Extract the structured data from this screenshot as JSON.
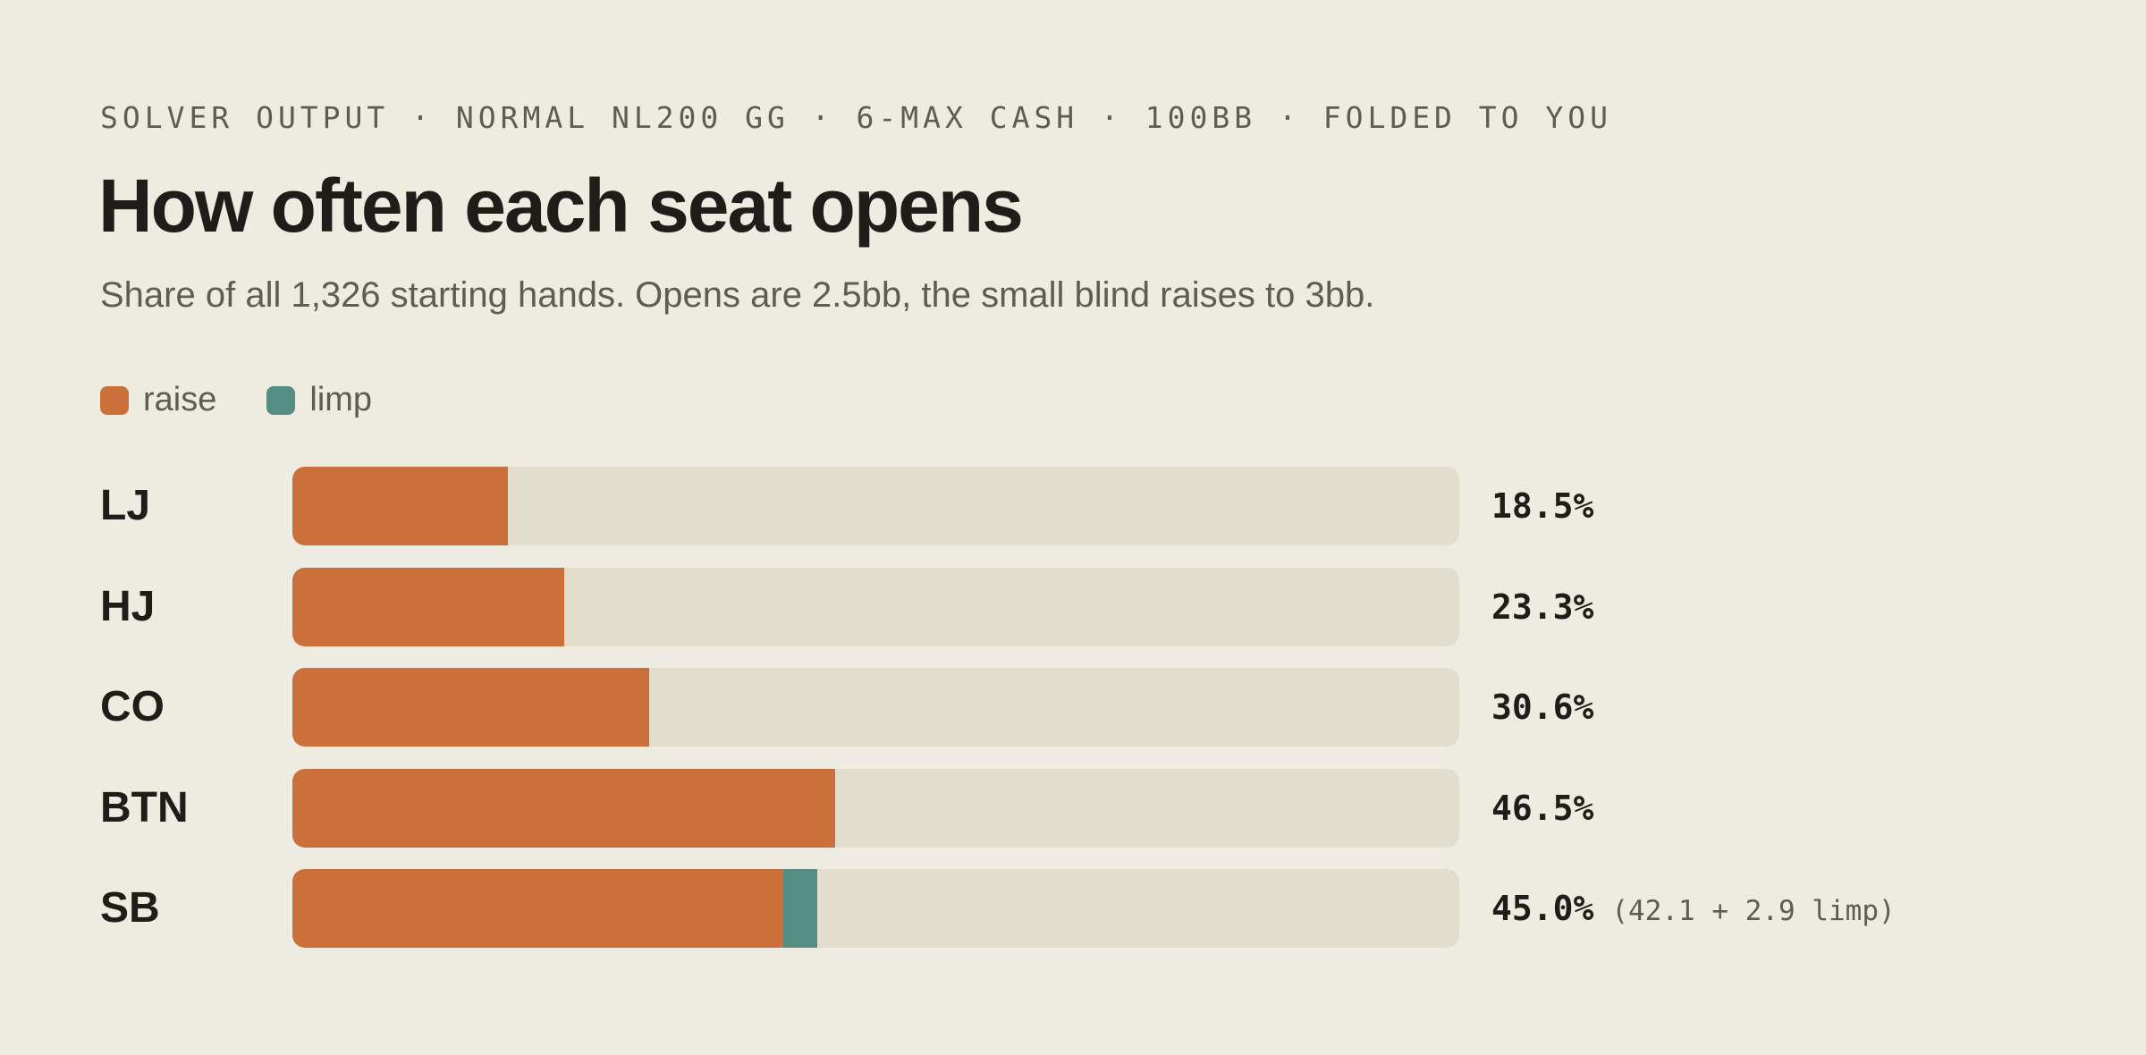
{
  "header": {
    "eyebrow": "SOLVER OUTPUT · NORMAL NL200 GG · 6-MAX CASH · 100BB · FOLDED TO YOU",
    "title": "How often each seat opens",
    "subtitle": "Share of all 1,326 starting hands. Opens are 2.5bb, the small blind raises to 3bb."
  },
  "legend": [
    {
      "label": "raise",
      "color": "#cb6f3b"
    },
    {
      "label": "limp",
      "color": "#558c84"
    }
  ],
  "colors": {
    "track": "#e2ddcd"
  },
  "chart_data": {
    "type": "bar",
    "orientation": "horizontal",
    "stacked": true,
    "categories": [
      "LJ",
      "HJ",
      "CO",
      "BTN",
      "SB"
    ],
    "series": [
      {
        "name": "raise",
        "values": [
          18.5,
          23.3,
          30.6,
          46.5,
          42.1
        ]
      },
      {
        "name": "limp",
        "values": [
          0,
          0,
          0,
          0,
          2.9
        ]
      }
    ],
    "xlim": [
      0,
      100
    ],
    "value_labels": [
      "18.5%",
      "23.3%",
      "30.6%",
      "46.5%",
      "45.0%"
    ],
    "notes": [
      "",
      "",
      "",
      "",
      "(42.1 + 2.9 limp)"
    ],
    "legend_position": "top-left",
    "grid": false
  }
}
